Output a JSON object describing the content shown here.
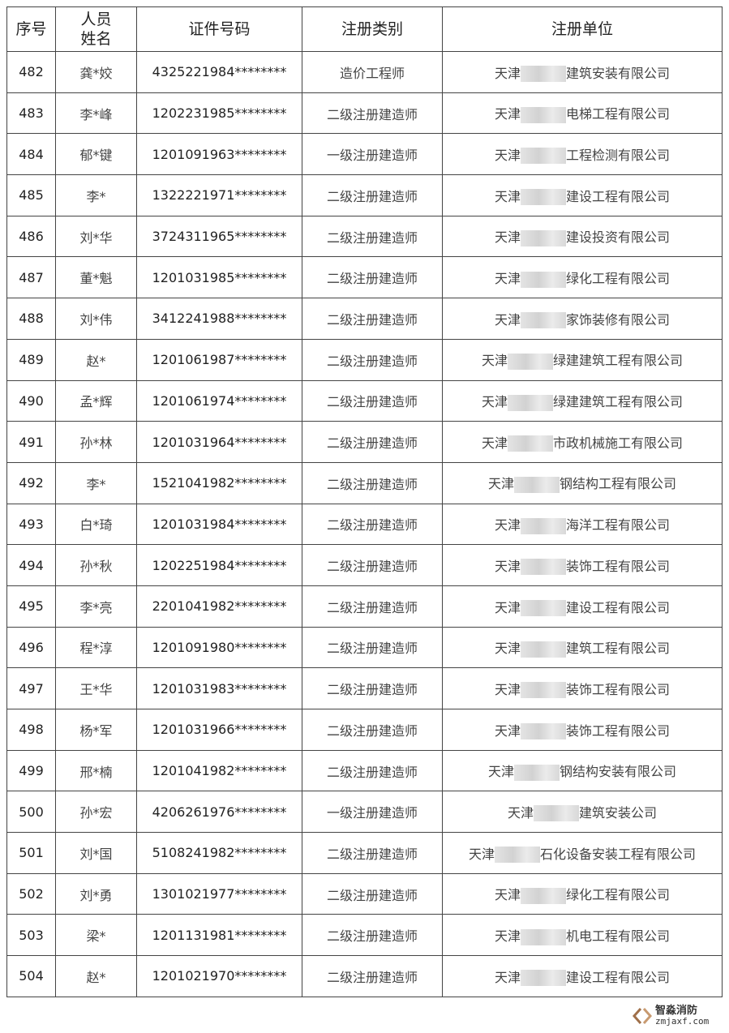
{
  "header": {
    "seq": "序号",
    "name": "人员姓名",
    "id": "证件号码",
    "category": "注册类别",
    "unit": "注册单位"
  },
  "rows": [
    {
      "seq": "482",
      "name": "龚*姣",
      "id": "4325221984********",
      "category": "造价工程师",
      "unit_prefix": "天津",
      "unit_suffix": "建筑安装有限公司"
    },
    {
      "seq": "483",
      "name": "李*峰",
      "id": "1202231985********",
      "category": "二级注册建造师",
      "unit_prefix": "天津",
      "unit_suffix": "电梯工程有限公司"
    },
    {
      "seq": "484",
      "name": "郁*键",
      "id": "1201091963********",
      "category": "一级注册建造师",
      "unit_prefix": "天津",
      "unit_suffix": "工程检测有限公司"
    },
    {
      "seq": "485",
      "name": "李*",
      "id": "1322221971********",
      "category": "二级注册建造师",
      "unit_prefix": "天津",
      "unit_suffix": "建设工程有限公司"
    },
    {
      "seq": "486",
      "name": "刘*华",
      "id": "3724311965********",
      "category": "二级注册建造师",
      "unit_prefix": "天津",
      "unit_suffix": "建设投资有限公司"
    },
    {
      "seq": "487",
      "name": "董*魁",
      "id": "1201031985********",
      "category": "二级注册建造师",
      "unit_prefix": "天津",
      "unit_suffix": "绿化工程有限公司"
    },
    {
      "seq": "488",
      "name": "刘*伟",
      "id": "3412241988********",
      "category": "二级注册建造师",
      "unit_prefix": "天津",
      "unit_suffix": "家饰装修有限公司"
    },
    {
      "seq": "489",
      "name": "赵*",
      "id": "1201061987********",
      "category": "二级注册建造师",
      "unit_prefix": "天津",
      "unit_suffix": "绿建建筑工程有限公司"
    },
    {
      "seq": "490",
      "name": "孟*辉",
      "id": "1201061974********",
      "category": "二级注册建造师",
      "unit_prefix": "天津",
      "unit_suffix": "绿建建筑工程有限公司"
    },
    {
      "seq": "491",
      "name": "孙*林",
      "id": "1201031964********",
      "category": "二级注册建造师",
      "unit_prefix": "天津",
      "unit_suffix": "市政机械施工有限公司"
    },
    {
      "seq": "492",
      "name": "李*",
      "id": "1521041982********",
      "category": "二级注册建造师",
      "unit_prefix": "天津",
      "unit_suffix": "钢结构工程有限公司"
    },
    {
      "seq": "493",
      "name": "白*琦",
      "id": "1201031984********",
      "category": "二级注册建造师",
      "unit_prefix": "天津",
      "unit_suffix": "海洋工程有限公司"
    },
    {
      "seq": "494",
      "name": "孙*秋",
      "id": "1202251984********",
      "category": "二级注册建造师",
      "unit_prefix": "天津",
      "unit_suffix": "装饰工程有限公司"
    },
    {
      "seq": "495",
      "name": "李*亮",
      "id": "2201041982********",
      "category": "二级注册建造师",
      "unit_prefix": "天津",
      "unit_suffix": "建设工程有限公司"
    },
    {
      "seq": "496",
      "name": "程*淳",
      "id": "1201091980********",
      "category": "二级注册建造师",
      "unit_prefix": "天津",
      "unit_suffix": "建筑工程有限公司"
    },
    {
      "seq": "497",
      "name": "王*华",
      "id": "1201031983********",
      "category": "二级注册建造师",
      "unit_prefix": "天津",
      "unit_suffix": "装饰工程有限公司"
    },
    {
      "seq": "498",
      "name": "杨*军",
      "id": "1201031966********",
      "category": "二级注册建造师",
      "unit_prefix": "天津",
      "unit_suffix": "装饰工程有限公司"
    },
    {
      "seq": "499",
      "name": "邢*楠",
      "id": "1201041982********",
      "category": "二级注册建造师",
      "unit_prefix": "天津",
      "unit_suffix": "钢结构安装有限公司"
    },
    {
      "seq": "500",
      "name": "孙*宏",
      "id": "4206261976********",
      "category": "一级注册建造师",
      "unit_prefix": "天津",
      "unit_suffix": "建筑安装公司"
    },
    {
      "seq": "501",
      "name": "刘*国",
      "id": "5108241982********",
      "category": "二级注册建造师",
      "unit_prefix": "天津",
      "unit_suffix": "石化设备安装工程有限公司"
    },
    {
      "seq": "502",
      "name": "刘*勇",
      "id": "1301021977********",
      "category": "二级注册建造师",
      "unit_prefix": "天津",
      "unit_suffix": "绿化工程有限公司"
    },
    {
      "seq": "503",
      "name": "梁*",
      "id": "1201131981********",
      "category": "二级注册建造师",
      "unit_prefix": "天津",
      "unit_suffix": "机电工程有限公司"
    },
    {
      "seq": "504",
      "name": "赵*",
      "id": "1201021970********",
      "category": "二级注册建造师",
      "unit_prefix": "天津",
      "unit_suffix": "建设工程有限公司"
    }
  ],
  "watermark": {
    "name": "智淼消防",
    "site": "zmjaxf.com",
    "logo_color": "#a0704a"
  }
}
